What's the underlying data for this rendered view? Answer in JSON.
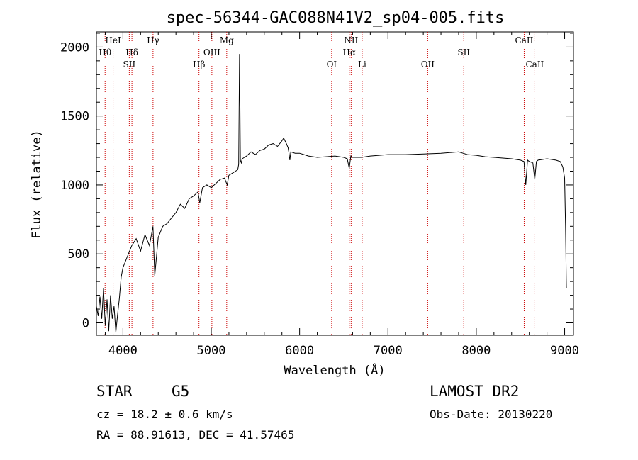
{
  "chart_data": {
    "type": "line",
    "title": "spec-56344-GAC088N41V2_sp04-005.fits",
    "xlabel": "Wavelength (Å)",
    "ylabel": "Flux (relative)",
    "xlim": [
      3700,
      9100
    ],
    "ylim": [
      -90,
      2110
    ],
    "xticks": [
      4000,
      5000,
      6000,
      7000,
      8000,
      9000
    ],
    "yticks": [
      0,
      500,
      1000,
      1500,
      2000
    ],
    "grid": false,
    "line_color": "#000000",
    "marker_color": "#cc0000",
    "series": [
      {
        "x": [
          3700,
          3720,
          3740,
          3760,
          3780,
          3800,
          3820,
          3840,
          3860,
          3880,
          3900,
          3920,
          3940,
          3960,
          3980,
          4000,
          4050,
          4100,
          4150,
          4200,
          4250,
          4300,
          4340,
          4360,
          4400,
          4450,
          4500,
          4550,
          4600,
          4650,
          4700,
          4750,
          4800,
          4850,
          4870,
          4900,
          4950,
          5000,
          5050,
          5100,
          5150,
          5180,
          5200,
          5250,
          5300,
          5310,
          5320,
          5330,
          5340,
          5350,
          5400,
          5450,
          5500,
          5550,
          5600,
          5650,
          5700,
          5750,
          5800,
          5820,
          5850,
          5870,
          5880,
          5890,
          5900,
          5950,
          6000,
          6050,
          6100,
          6200,
          6300,
          6400,
          6500,
          6540,
          6562,
          6580,
          6600,
          6700,
          6800,
          6900,
          7000,
          7200,
          7400,
          7600,
          7800,
          7850,
          7900,
          8000,
          8100,
          8200,
          8300,
          8400,
          8500,
          8540,
          8560,
          8580,
          8600,
          8640,
          8662,
          8680,
          8700,
          8800,
          8900,
          8950,
          8980,
          9000,
          9010,
          9020
        ],
        "y": [
          120,
          50,
          190,
          30,
          250,
          -20,
          170,
          -60,
          200,
          30,
          120,
          -70,
          60,
          180,
          330,
          400,
          480,
          560,
          610,
          520,
          640,
          560,
          700,
          340,
          620,
          700,
          720,
          760,
          800,
          860,
          830,
          900,
          920,
          950,
          870,
          980,
          1000,
          980,
          1010,
          1040,
          1050,
          1000,
          1070,
          1090,
          1110,
          1150,
          1950,
          1180,
          1160,
          1190,
          1210,
          1240,
          1220,
          1250,
          1260,
          1290,
          1300,
          1280,
          1320,
          1340,
          1300,
          1270,
          1230,
          1180,
          1240,
          1230,
          1230,
          1220,
          1210,
          1200,
          1205,
          1210,
          1200,
          1190,
          1120,
          1210,
          1200,
          1200,
          1210,
          1215,
          1220,
          1220,
          1225,
          1230,
          1240,
          1230,
          1220,
          1215,
          1205,
          1200,
          1195,
          1190,
          1180,
          1170,
          1000,
          1180,
          1170,
          1160,
          1040,
          1170,
          1180,
          1190,
          1180,
          1170,
          1130,
          1050,
          700,
          250
        ]
      }
    ],
    "lines": [
      {
        "label": "Hθ",
        "wave": 3798,
        "row": 1
      },
      {
        "label": "HeI",
        "wave": 3889,
        "row": 0
      },
      {
        "label": "SII",
        "wave": 4072,
        "row": 2
      },
      {
        "label": "Hδ",
        "wave": 4102,
        "row": 1
      },
      {
        "label": "Hγ",
        "wave": 4341,
        "row": 0
      },
      {
        "label": "Hβ",
        "wave": 4861,
        "row": 2
      },
      {
        "label": "OIII",
        "wave": 5007,
        "row": 1
      },
      {
        "label": "Mg",
        "wave": 5175,
        "row": 0
      },
      {
        "label": "OI",
        "wave": 6363,
        "row": 2
      },
      {
        "label": "NII",
        "wave": 6583,
        "row": 0
      },
      {
        "label": "Hα",
        "wave": 6563,
        "row": 1
      },
      {
        "label": "Li",
        "wave": 6708,
        "row": 2
      },
      {
        "label": "OII",
        "wave": 7450,
        "row": 2
      },
      {
        "label": "SII",
        "wave": 7858,
        "row": 1
      },
      {
        "label": "CaII",
        "wave": 8542,
        "row": 0
      },
      {
        "label": "CaII",
        "wave": 8662,
        "row": 2
      }
    ]
  },
  "info": {
    "class": "STAR",
    "subclass": "G5",
    "survey": "LAMOST DR2",
    "redshift": "cz = 18.2 ± 0.6 km/s",
    "obs_date": "Obs-Date: 20130220",
    "coords": "RA =  88.91613, DEC =  41.57465"
  }
}
